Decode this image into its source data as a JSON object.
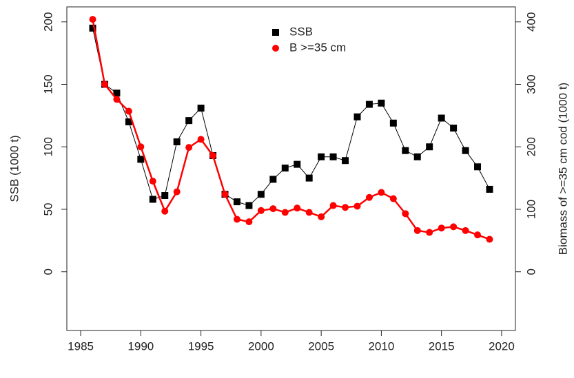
{
  "chart_data": {
    "type": "line",
    "x": [
      1986,
      1987,
      1988,
      1989,
      1990,
      1991,
      1992,
      1993,
      1994,
      1995,
      1996,
      1997,
      1998,
      1999,
      2000,
      2001,
      2002,
      2003,
      2004,
      2005,
      2006,
      2007,
      2008,
      2009,
      2010,
      2011,
      2012,
      2013,
      2014,
      2015,
      2016,
      2017,
      2018,
      2019
    ],
    "series": [
      {
        "name": "SSB",
        "color": "#000000",
        "marker": "square",
        "values": [
          195,
          150,
          143,
          120,
          90,
          58,
          61,
          104,
          121,
          131,
          93,
          62,
          56,
          53,
          62,
          74,
          83,
          86,
          75,
          92,
          92,
          89,
          124,
          134,
          135,
          119,
          97,
          92,
          100,
          123,
          115,
          97,
          84,
          66
        ]
      },
      {
        "name": "B >=35 cm",
        "color": "#ff0000",
        "marker": "circle",
        "axis": "y2",
        "values": [
          404,
          300,
          276,
          257,
          200,
          145,
          97,
          128,
          199,
          212,
          186,
          124,
          84,
          80,
          98,
          101,
          95,
          102,
          95,
          88,
          106,
          103,
          105,
          119,
          127,
          117,
          93,
          66,
          63,
          70,
          72,
          66,
          59,
          52
        ]
      }
    ],
    "ylabel": "SSB (1000 t)",
    "y2label": "Biomass of >=35 cm cod (1000 t)",
    "xlim": [
      1983.85,
      2021.15
    ],
    "xticks": [
      1985,
      1990,
      1995,
      2000,
      2005,
      2010,
      2015,
      2020
    ],
    "ylim": [
      -47,
      212
    ],
    "yticks": [
      0,
      50,
      100,
      150,
      200
    ],
    "y2lim": [
      -94,
      424
    ],
    "y2ticks": [
      0,
      100,
      200,
      300,
      400
    ]
  }
}
